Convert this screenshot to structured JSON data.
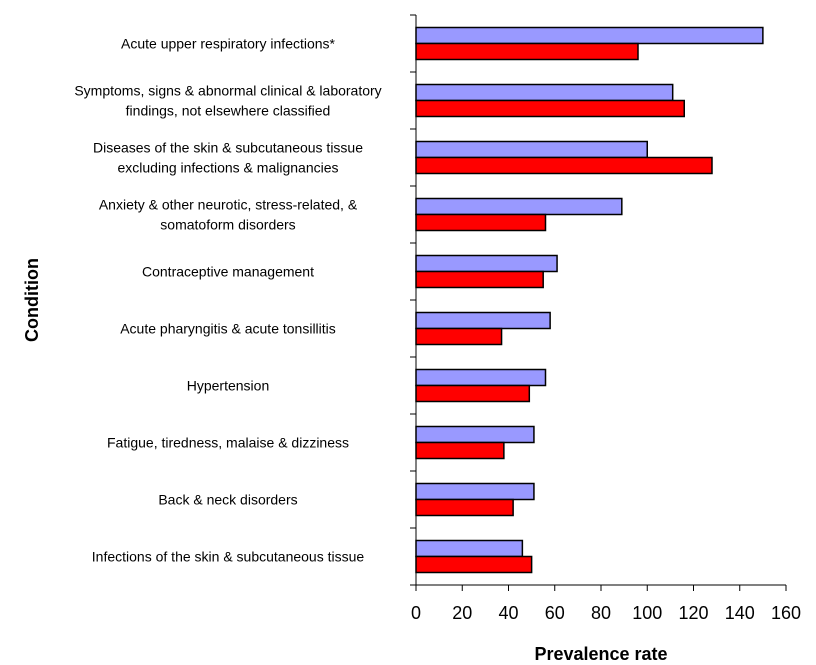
{
  "chart_data": {
    "type": "bar",
    "orientation": "horizontal",
    "xlabel": "Prevalence rate",
    "ylabel": "Condition",
    "xlim": [
      0,
      160
    ],
    "xticks": [
      "0",
      "20",
      "40",
      "60",
      "80",
      "100",
      "120",
      "140",
      "160"
    ],
    "grid": false,
    "legend": "none",
    "categories": [
      [
        "Acute upper respiratory infections*"
      ],
      [
        "Symptoms, signs & abnormal clinical & laboratory",
        "findings, not elsewhere classified"
      ],
      [
        "Diseases of the skin & subcutaneous tissue",
        "excluding infections & malignancies"
      ],
      [
        "Anxiety & other neurotic, stress-related, &",
        "somatoform disorders"
      ],
      [
        "Contraceptive management"
      ],
      [
        "Acute pharyngitis & acute tonsillitis"
      ],
      [
        "Hypertension"
      ],
      [
        "Fatigue, tiredness, malaise & dizziness"
      ],
      [
        "Back & neck disorders"
      ],
      [
        "Infections of the skin & subcutaneous tissue"
      ]
    ],
    "series": [
      {
        "color": "#9999ff",
        "values": [
          150,
          111,
          100,
          89,
          61,
          58,
          56,
          51,
          51,
          46
        ]
      },
      {
        "color": "#ff0000",
        "values": [
          96,
          116,
          128,
          56,
          55,
          37,
          49,
          38,
          42,
          50
        ]
      }
    ]
  }
}
